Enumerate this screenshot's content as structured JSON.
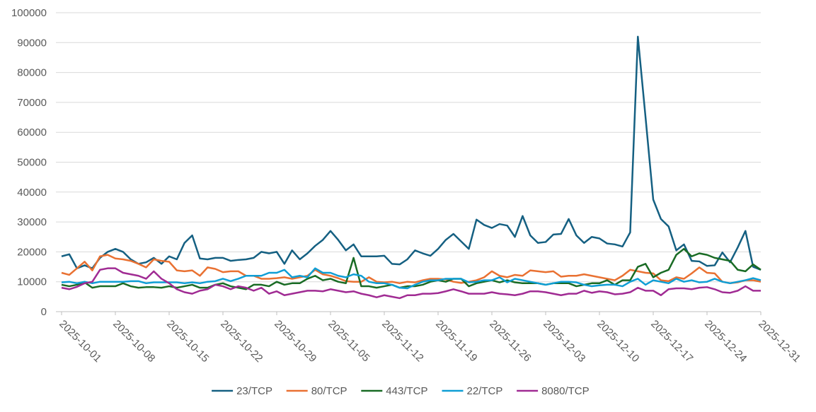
{
  "chart_data": {
    "type": "line",
    "categories": [
      "2025-10-01",
      null,
      null,
      null,
      null,
      null,
      null,
      "2025-10-08",
      null,
      null,
      null,
      null,
      null,
      null,
      "2025-10-15",
      null,
      null,
      null,
      null,
      null,
      null,
      "2025-10-22",
      null,
      null,
      null,
      null,
      null,
      null,
      "2025-10-29",
      null,
      null,
      null,
      null,
      null,
      null,
      "2025-11-05",
      null,
      null,
      null,
      null,
      null,
      null,
      "2025-11-12",
      null,
      null,
      null,
      null,
      null,
      null,
      "2025-11-19",
      null,
      null,
      null,
      null,
      null,
      null,
      "2025-11-26",
      null,
      null,
      null,
      null,
      null,
      null,
      "2025-12-03",
      null,
      null,
      null,
      null,
      null,
      null,
      "2025-12-10",
      null,
      null,
      null,
      null,
      null,
      null,
      "2025-12-17",
      null,
      null,
      null,
      null,
      null,
      null,
      "2025-12-24",
      null,
      null,
      null,
      null,
      null,
      null,
      "2025-12-31"
    ],
    "series": [
      {
        "name": "23/TCP",
        "color": "#156082",
        "values": [
          18500,
          19200,
          14500,
          15500,
          14500,
          18000,
          20000,
          21000,
          20000,
          17500,
          16000,
          16500,
          18000,
          16000,
          18500,
          17500,
          23000,
          25500,
          17800,
          17500,
          18000,
          18000,
          17000,
          17300,
          17500,
          18000,
          20000,
          19500,
          20000,
          16000,
          20500,
          17500,
          19500,
          22000,
          24000,
          27000,
          24000,
          20500,
          22500,
          18500,
          18500,
          18500,
          18700,
          16000,
          15800,
          17500,
          20500,
          19500,
          18700,
          21000,
          24000,
          26000,
          23500,
          21000,
          30800,
          29000,
          28000,
          29300,
          28800,
          25000,
          32000,
          25500,
          23000,
          23300,
          25800,
          26000,
          31000,
          25500,
          23000,
          25000,
          24500,
          22800,
          22500,
          21800,
          26500,
          92000,
          65000,
          37500,
          31000,
          28500,
          20500,
          22500,
          17000,
          16800,
          15300,
          15500,
          19800,
          16500,
          21500,
          27000,
          15000,
          14000
        ]
      },
      {
        "name": "80/TCP",
        "color": "#e97132",
        "values": [
          13000,
          12300,
          14500,
          16700,
          13800,
          18500,
          19000,
          17800,
          17500,
          17000,
          16000,
          14800,
          17500,
          17000,
          16700,
          13800,
          13500,
          13800,
          12000,
          14800,
          14300,
          13200,
          13500,
          13500,
          12000,
          12000,
          11000,
          11000,
          11200,
          11500,
          11000,
          11500,
          12000,
          14000,
          12500,
          12000,
          11200,
          10200,
          10000,
          10000,
          11500,
          10000,
          9800,
          10000,
          9500,
          10000,
          9800,
          10500,
          11000,
          11000,
          10800,
          10000,
          9600,
          10000,
          10500,
          11500,
          13500,
          12000,
          11500,
          12300,
          12000,
          13800,
          13500,
          13200,
          13500,
          11700,
          12000,
          12000,
          12500,
          12000,
          11500,
          11000,
          10500,
          12000,
          14000,
          13500,
          13000,
          12800,
          10500,
          10200,
          11500,
          11000,
          12800,
          14800,
          13000,
          12800,
          10000,
          9500,
          9800,
          10500,
          10500,
          10000
        ]
      },
      {
        "name": "443/TCP",
        "color": "#196b24",
        "values": [
          9000,
          8500,
          9000,
          9800,
          8000,
          8500,
          8500,
          8500,
          9500,
          8500,
          8000,
          8200,
          8200,
          8000,
          8500,
          8000,
          8500,
          9000,
          8000,
          8000,
          9000,
          9500,
          8500,
          8000,
          7500,
          9000,
          9000,
          8500,
          10000,
          9000,
          9500,
          9500,
          11000,
          12000,
          10500,
          11000,
          10000,
          9500,
          18000,
          8500,
          8500,
          8000,
          8500,
          9000,
          8000,
          8500,
          8500,
          9000,
          10000,
          10500,
          10000,
          11000,
          11000,
          8500,
          9500,
          10000,
          10500,
          9800,
          10500,
          9800,
          9500,
          9500,
          9500,
          9000,
          9500,
          9500,
          9500,
          8500,
          9000,
          9500,
          9500,
          10500,
          9000,
          10500,
          10500,
          15000,
          16000,
          11500,
          13000,
          14000,
          19000,
          21000,
          18500,
          19500,
          19000,
          18000,
          17500,
          17000,
          14000,
          13500,
          15800,
          14000
        ]
      },
      {
        "name": "22/TCP",
        "color": "#0f9ed5",
        "values": [
          9800,
          10000,
          9500,
          10000,
          9500,
          10000,
          10000,
          10000,
          10000,
          10200,
          10200,
          9500,
          9800,
          9800,
          9800,
          9800,
          9500,
          9800,
          9500,
          10000,
          10200,
          11000,
          10200,
          11000,
          12000,
          12000,
          12000,
          13000,
          13000,
          14000,
          11500,
          12000,
          11500,
          14500,
          13000,
          13000,
          12000,
          11500,
          12500,
          12000,
          10000,
          9500,
          9500,
          9000,
          8000,
          7800,
          9000,
          10000,
          10500,
          10500,
          11000,
          11000,
          11000,
          9800,
          10000,
          10500,
          10500,
          11500,
          9800,
          11000,
          10500,
          10000,
          9500,
          9000,
          9500,
          10000,
          10000,
          9800,
          9000,
          8500,
          8800,
          9000,
          9000,
          8500,
          10000,
          11000,
          9000,
          10500,
          10000,
          9500,
          11000,
          10000,
          10500,
          9800,
          10000,
          11000,
          10000,
          9500,
          10000,
          10500,
          11200,
          10500
        ]
      },
      {
        "name": "8080/TCP",
        "color": "#a02b93",
        "values": [
          8000,
          7500,
          8300,
          9500,
          10000,
          14000,
          14500,
          14500,
          13000,
          12500,
          12000,
          11000,
          13500,
          11000,
          9500,
          7500,
          6500,
          6000,
          7000,
          7500,
          9000,
          8500,
          7500,
          8500,
          8000,
          7000,
          8000,
          6000,
          6800,
          5500,
          6000,
          6500,
          7000,
          7000,
          6800,
          7500,
          7000,
          6500,
          6800,
          6000,
          5500,
          4800,
          5500,
          5000,
          4500,
          5500,
          5500,
          6000,
          6000,
          6200,
          6800,
          7500,
          6800,
          6000,
          6000,
          6000,
          6500,
          6000,
          5800,
          5500,
          6000,
          6800,
          6800,
          6500,
          6000,
          5500,
          6000,
          6000,
          7000,
          6300,
          6800,
          6500,
          5800,
          6000,
          6500,
          8000,
          7000,
          7000,
          5500,
          7500,
          7800,
          7800,
          7500,
          8000,
          8200,
          7500,
          6500,
          6300,
          7000,
          8500,
          7000,
          7000
        ]
      }
    ],
    "ylim": [
      0,
      100000
    ],
    "yticks": [
      0,
      10000,
      20000,
      30000,
      40000,
      50000,
      60000,
      70000,
      80000,
      90000,
      100000
    ],
    "grid": true,
    "legend": "bottom"
  }
}
